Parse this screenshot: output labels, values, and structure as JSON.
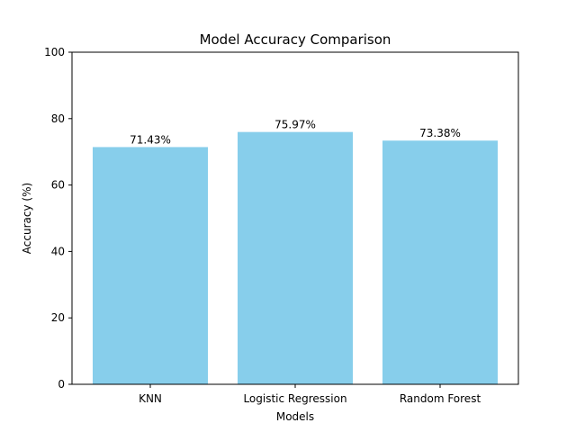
{
  "chart_data": {
    "type": "bar",
    "title": "Model Accuracy Comparison",
    "xlabel": "Models",
    "ylabel": "Accuracy (%)",
    "categories": [
      "KNN",
      "Logistic Regression",
      "Random Forest"
    ],
    "values": [
      71.43,
      75.97,
      73.38
    ],
    "data_labels": [
      "71.43%",
      "75.97%",
      "73.38%"
    ],
    "ylim": [
      0,
      100
    ],
    "yticks": [
      0,
      20,
      40,
      60,
      80,
      100
    ],
    "ytick_labels": [
      "0",
      "20",
      "40",
      "60",
      "80",
      "100"
    ],
    "bar_color": "#87ceeb",
    "grid": false,
    "legend": "none"
  }
}
